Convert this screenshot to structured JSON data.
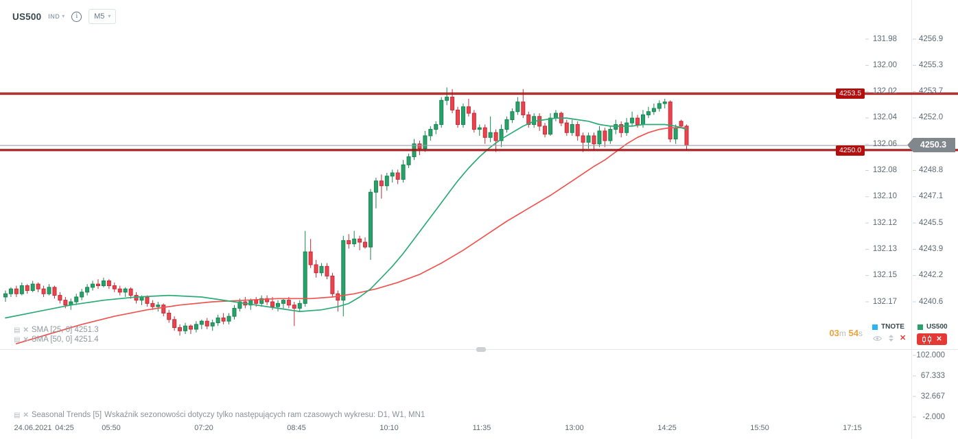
{
  "header": {
    "symbol": "US500",
    "instrument_type": "IND",
    "timeframe": "M5"
  },
  "icons": {
    "close": "✕",
    "caret": "▾",
    "panel": "▤",
    "info": "i"
  },
  "timer": {
    "minutes": "03",
    "minutes_unit": "m",
    "seconds": "54",
    "seconds_unit": "s"
  },
  "legend": {
    "tnote": {
      "label": "TNOTE",
      "color": "#29b6f6"
    },
    "us500": {
      "label": "US500",
      "color": "#2aa06a"
    }
  },
  "overlays": {
    "sma25_label": "SMA [25, 0] 4251.3",
    "sma50_label": "SMA [50, 0] 4251.4"
  },
  "indicator_pane": {
    "title": "Seasonal Trends [5]",
    "message": "Wskaźnik sezonowości dotyczy tylko następujących ram czasowych wykresu: D1, W1, MN1",
    "ticks": [
      "102.000",
      "67.333",
      "32.667",
      "-2.000"
    ]
  },
  "price_axis": {
    "tnote_ticks": [
      "131.98",
      "132.00",
      "132.02",
      "132.04",
      "132.06",
      "132.08",
      "132.10",
      "132.12",
      "132.13",
      "132.15",
      "132.17"
    ],
    "us500_ticks": [
      "4256.9",
      "4255.3",
      "4253.7",
      "4252.0",
      "",
      "4248.8",
      "4247.1",
      "4245.5",
      "4243.9",
      "4242.2",
      "4240.6"
    ],
    "current_price": "4250.3"
  },
  "levels": [
    {
      "label": "4253.5",
      "price": 4253.5
    },
    {
      "label": "4250.0",
      "price": 4250.0
    }
  ],
  "time_axis": {
    "date_label": "24.06.2021",
    "labels": [
      "04:25",
      "05:50",
      "07:20",
      "08:45",
      "10:10",
      "11:35",
      "13:00",
      "14:25",
      "15:50",
      "17:15"
    ]
  },
  "colors": {
    "bull": "#2aa06a",
    "bull_border": "#15854f",
    "bear": "#e84550",
    "bear_border": "#c62a35",
    "sma25": "#2aab76",
    "sma50": "#ef5350",
    "level_line": "#b21212",
    "level_badge_bg": "#b20f0f",
    "price_line": "#9aa1a5",
    "price_badge_bg": "#81888d",
    "timer_orange": "#f0a238",
    "axis_text": "#5d6a73",
    "muted_text": "#90989d"
  },
  "chart_data": {
    "type": "candlestick",
    "symbol": "US500",
    "interval": "M5",
    "start_time": "04:10",
    "interval_min": 5,
    "price_range_visible": [
      4240.6,
      4256.9
    ],
    "secondary_axis_range": [
      131.98,
      132.17
    ],
    "last_price": 4250.3,
    "levels": [
      4253.5,
      4250.0
    ],
    "candles": [
      [
        4240.9,
        4241.3,
        4240.6,
        4241.1
      ],
      [
        4241.1,
        4241.5,
        4240.9,
        4241.4
      ],
      [
        4241.4,
        4241.6,
        4240.9,
        4241.1
      ],
      [
        4241.1,
        4241.8,
        4241.0,
        4241.6
      ],
      [
        4241.6,
        4241.7,
        4241.1,
        4241.3
      ],
      [
        4241.3,
        4241.9,
        4241.2,
        4241.7
      ],
      [
        4241.7,
        4241.8,
        4241.2,
        4241.4
      ],
      [
        4241.4,
        4241.6,
        4240.9,
        4241.1
      ],
      [
        4241.1,
        4241.7,
        4241.0,
        4241.5
      ],
      [
        4241.5,
        4241.6,
        4240.8,
        4241.0
      ],
      [
        4241.0,
        4241.2,
        4240.5,
        4240.7
      ],
      [
        4240.7,
        4240.9,
        4240.2,
        4240.4
      ],
      [
        4240.4,
        4240.8,
        4240.1,
        4240.6
      ],
      [
        4240.6,
        4241.1,
        4240.4,
        4240.9
      ],
      [
        4240.9,
        4241.4,
        4240.7,
        4241.2
      ],
      [
        4241.2,
        4241.7,
        4241.0,
        4241.5
      ],
      [
        4241.5,
        4241.9,
        4241.3,
        4241.7
      ],
      [
        4241.7,
        4242.0,
        4241.4,
        4241.6
      ],
      [
        4241.6,
        4242.1,
        4241.5,
        4241.9
      ],
      [
        4241.9,
        4242.0,
        4241.4,
        4241.6
      ],
      [
        4241.6,
        4241.8,
        4241.2,
        4241.4
      ],
      [
        4241.4,
        4241.6,
        4241.0,
        4241.2
      ],
      [
        4241.2,
        4241.5,
        4240.9,
        4241.4
      ],
      [
        4241.4,
        4241.5,
        4240.8,
        4241.0
      ],
      [
        4241.0,
        4241.2,
        4240.5,
        4240.7
      ],
      [
        4240.7,
        4241.0,
        4240.4,
        4240.9
      ],
      [
        4240.9,
        4241.0,
        4240.3,
        4240.5
      ],
      [
        4240.5,
        4240.7,
        4240.1,
        4240.3
      ],
      [
        4240.3,
        4240.6,
        4240.0,
        4240.4
      ],
      [
        4240.4,
        4240.5,
        4239.7,
        4239.9
      ],
      [
        4239.9,
        4240.1,
        4239.3,
        4239.5
      ],
      [
        4239.5,
        4239.7,
        4238.8,
        4239.0
      ],
      [
        4239.0,
        4239.2,
        4238.5,
        4238.8
      ],
      [
        4238.8,
        4239.3,
        4238.6,
        4239.1
      ],
      [
        4239.1,
        4239.2,
        4238.6,
        4238.9
      ],
      [
        4238.9,
        4239.4,
        4238.7,
        4239.2
      ],
      [
        4239.2,
        4239.5,
        4238.9,
        4239.4
      ],
      [
        4239.4,
        4239.6,
        4238.9,
        4239.1
      ],
      [
        4239.1,
        4239.5,
        4238.8,
        4239.3
      ],
      [
        4239.3,
        4239.8,
        4239.1,
        4239.6
      ],
      [
        4239.6,
        4239.9,
        4239.2,
        4239.4
      ],
      [
        4239.4,
        4239.9,
        4239.2,
        4239.7
      ],
      [
        4239.7,
        4240.4,
        4239.5,
        4240.2
      ],
      [
        4240.2,
        4240.8,
        4240.0,
        4240.6
      ],
      [
        4240.6,
        4240.9,
        4240.2,
        4240.4
      ],
      [
        4240.4,
        4240.8,
        4240.1,
        4240.7
      ],
      [
        4240.7,
        4240.9,
        4240.3,
        4240.5
      ],
      [
        4240.5,
        4241.0,
        4240.3,
        4240.8
      ],
      [
        4240.8,
        4241.0,
        4240.4,
        4240.6
      ],
      [
        4240.6,
        4240.9,
        4240.1,
        4240.3
      ],
      [
        4240.3,
        4240.7,
        4240.0,
        4240.5
      ],
      [
        4240.5,
        4240.8,
        4240.2,
        4240.7
      ],
      [
        4240.7,
        4240.9,
        4240.2,
        4240.4
      ],
      [
        4240.4,
        4240.6,
        4239.1,
        4240.2
      ],
      [
        4240.2,
        4240.7,
        4240.0,
        4240.5
      ],
      [
        4240.5,
        4245.0,
        4240.3,
        4243.7
      ],
      [
        4243.7,
        4244.5,
        4242.7,
        4242.9
      ],
      [
        4242.9,
        4243.2,
        4242.1,
        4242.4
      ],
      [
        4242.4,
        4243.0,
        4242.2,
        4242.8
      ],
      [
        4242.8,
        4243.0,
        4242.0,
        4242.2
      ],
      [
        4242.2,
        4242.4,
        4240.9,
        4241.1
      ],
      [
        4241.1,
        4241.3,
        4240.0,
        4240.7
      ],
      [
        4240.7,
        4244.7,
        4239.7,
        4244.4
      ],
      [
        4244.4,
        4244.8,
        4243.9,
        4244.2
      ],
      [
        4244.2,
        4245.0,
        4244.0,
        4244.5
      ],
      [
        4244.5,
        4244.7,
        4243.8,
        4244.3
      ],
      [
        4244.3,
        4244.6,
        4243.9,
        4244.0
      ],
      [
        4244.0,
        4247.6,
        4243.2,
        4247.4
      ],
      [
        4247.4,
        4248.3,
        4246.4,
        4248.1
      ],
      [
        4248.1,
        4248.5,
        4247.0,
        4247.8
      ],
      [
        4247.8,
        4248.6,
        4247.5,
        4248.4
      ],
      [
        4248.4,
        4248.8,
        4248.0,
        4248.6
      ],
      [
        4248.6,
        4248.8,
        4247.9,
        4248.2
      ],
      [
        4248.2,
        4249.4,
        4248.0,
        4249.1
      ],
      [
        4249.1,
        4249.8,
        4248.9,
        4249.6
      ],
      [
        4249.6,
        4250.7,
        4249.4,
        4250.4
      ],
      [
        4250.4,
        4250.6,
        4249.7,
        4250.1
      ],
      [
        4250.1,
        4251.2,
        4249.9,
        4250.9
      ],
      [
        4250.9,
        4251.5,
        4250.6,
        4251.3
      ],
      [
        4251.3,
        4251.8,
        4251.0,
        4251.6
      ],
      [
        4251.6,
        4253.3,
        4251.4,
        4253.1
      ],
      [
        4253.1,
        4253.9,
        4252.8,
        4253.3
      ],
      [
        4253.3,
        4253.8,
        4252.3,
        4252.5
      ],
      [
        4252.5,
        4252.7,
        4251.4,
        4251.6
      ],
      [
        4251.6,
        4252.9,
        4251.4,
        4252.7
      ],
      [
        4252.7,
        4253.2,
        4252.1,
        4252.3
      ],
      [
        4252.3,
        4252.5,
        4251.1,
        4251.3
      ],
      [
        4251.3,
        4251.6,
        4250.9,
        4251.4
      ],
      [
        4251.4,
        4251.6,
        4250.4,
        4250.8
      ],
      [
        4250.8,
        4252.1,
        4250.5,
        4251.1
      ],
      [
        4251.1,
        4251.3,
        4249.9,
        4250.6
      ],
      [
        4250.6,
        4251.6,
        4250.2,
        4251.3
      ],
      [
        4251.3,
        4252.1,
        4251.1,
        4251.9
      ],
      [
        4251.9,
        4252.6,
        4251.7,
        4252.4
      ],
      [
        4252.4,
        4253.3,
        4252.2,
        4253.0
      ],
      [
        4253.0,
        4253.8,
        4252.0,
        4252.2
      ],
      [
        4252.2,
        4252.4,
        4251.4,
        4251.6
      ],
      [
        4251.6,
        4252.3,
        4251.4,
        4252.1
      ],
      [
        4252.1,
        4252.3,
        4251.2,
        4251.5
      ],
      [
        4251.5,
        4251.7,
        4250.8,
        4251.0
      ],
      [
        4251.0,
        4252.3,
        4250.9,
        4252.0
      ],
      [
        4252.0,
        4252.5,
        4251.8,
        4252.3
      ],
      [
        4252.3,
        4252.4,
        4251.5,
        4251.7
      ],
      [
        4251.7,
        4251.9,
        4250.9,
        4251.1
      ],
      [
        4251.1,
        4251.9,
        4250.9,
        4251.6
      ],
      [
        4251.6,
        4251.8,
        4250.6,
        4250.9
      ],
      [
        4250.9,
        4251.1,
        4249.9,
        4250.5
      ],
      [
        4250.5,
        4251.1,
        4250.1,
        4250.9
      ],
      [
        4250.9,
        4251.1,
        4250.0,
        4250.4
      ],
      [
        4250.4,
        4251.5,
        4250.2,
        4251.2
      ],
      [
        4251.2,
        4251.4,
        4250.2,
        4250.6
      ],
      [
        4250.6,
        4251.5,
        4250.4,
        4251.3
      ],
      [
        4251.3,
        4251.9,
        4251.0,
        4251.6
      ],
      [
        4251.6,
        4251.8,
        4250.8,
        4251.1
      ],
      [
        4251.1,
        4252.0,
        4250.9,
        4251.7
      ],
      [
        4251.7,
        4252.4,
        4251.5,
        4252.0
      ],
      [
        4252.0,
        4252.2,
        4251.4,
        4251.6
      ],
      [
        4251.6,
        4252.5,
        4251.4,
        4252.2
      ],
      [
        4252.2,
        4252.7,
        4252.0,
        4252.4
      ],
      [
        4252.4,
        4252.9,
        4252.2,
        4252.6
      ],
      [
        4252.6,
        4253.1,
        4252.4,
        4252.9
      ],
      [
        4252.9,
        4253.2,
        4252.6,
        4253.0
      ],
      [
        4253.0,
        4253.1,
        4250.5,
        4250.7
      ],
      [
        4250.7,
        4251.6,
        4250.4,
        4251.4
      ],
      [
        4251.8,
        4251.9,
        4251.4,
        4251.5
      ],
      [
        4251.5,
        4251.6,
        4250.0,
        4250.3
      ]
    ],
    "sma25_points": [
      [
        0,
        4239.6
      ],
      [
        6,
        4240.0
      ],
      [
        12,
        4240.4
      ],
      [
        18,
        4240.7
      ],
      [
        24,
        4240.9
      ],
      [
        30,
        4241.0
      ],
      [
        36,
        4240.9
      ],
      [
        42,
        4240.6
      ],
      [
        46,
        4240.4
      ],
      [
        50,
        4240.2
      ],
      [
        54,
        4240.0
      ],
      [
        58,
        4240.1
      ],
      [
        61,
        4240.3
      ],
      [
        63,
        4240.5
      ],
      [
        65,
        4240.9
      ],
      [
        67,
        4241.4
      ],
      [
        69,
        4242.1
      ],
      [
        71,
        4242.8
      ],
      [
        73,
        4243.6
      ],
      [
        75,
        4244.5
      ],
      [
        77,
        4245.4
      ],
      [
        79,
        4246.3
      ],
      [
        81,
        4247.2
      ],
      [
        83,
        4248.1
      ],
      [
        85,
        4248.9
      ],
      [
        87,
        4249.6
      ],
      [
        89,
        4250.2
      ],
      [
        91,
        4250.7
      ],
      [
        93,
        4251.1
      ],
      [
        95,
        4251.5
      ],
      [
        97,
        4251.8
      ],
      [
        99,
        4251.9
      ],
      [
        101,
        4252.0
      ],
      [
        103,
        4252.0
      ],
      [
        105,
        4251.9
      ],
      [
        107,
        4251.8
      ],
      [
        109,
        4251.6
      ],
      [
        111,
        4251.5
      ],
      [
        113,
        4251.5
      ],
      [
        115,
        4251.5
      ],
      [
        117,
        4251.6
      ],
      [
        119,
        4251.6
      ],
      [
        121,
        4251.6
      ],
      [
        123,
        4251.5
      ],
      [
        125,
        4251.3
      ]
    ],
    "sma50_points": [
      [
        2,
        4238.0
      ],
      [
        8,
        4238.6
      ],
      [
        14,
        4239.2
      ],
      [
        20,
        4239.7
      ],
      [
        26,
        4240.1
      ],
      [
        32,
        4240.4
      ],
      [
        38,
        4240.6
      ],
      [
        44,
        4240.7
      ],
      [
        50,
        4240.8
      ],
      [
        56,
        4240.8
      ],
      [
        60,
        4240.9
      ],
      [
        64,
        4241.1
      ],
      [
        68,
        4241.4
      ],
      [
        72,
        4241.8
      ],
      [
        76,
        4242.3
      ],
      [
        80,
        4243.0
      ],
      [
        84,
        4243.8
      ],
      [
        88,
        4244.7
      ],
      [
        92,
        4245.6
      ],
      [
        96,
        4246.4
      ],
      [
        100,
        4247.2
      ],
      [
        104,
        4248.1
      ],
      [
        108,
        4249.0
      ],
      [
        110,
        4249.4
      ],
      [
        112,
        4249.9
      ],
      [
        114,
        4250.4
      ],
      [
        116,
        4250.8
      ],
      [
        118,
        4251.1
      ],
      [
        120,
        4251.3
      ],
      [
        122,
        4251.4
      ],
      [
        124,
        4251.4
      ],
      [
        125,
        4251.4
      ]
    ]
  }
}
